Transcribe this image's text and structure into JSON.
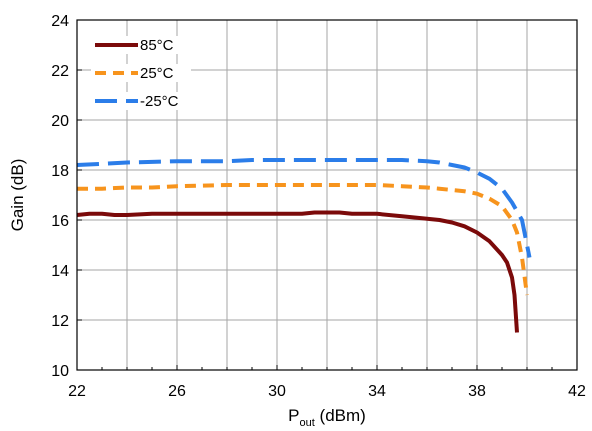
{
  "chart_data": {
    "type": "line",
    "xlabel_main": "P",
    "xlabel_sub": "out",
    "xlabel_unit": " (dBm)",
    "ylabel": "Gain (dB)",
    "xlim": [
      22,
      42
    ],
    "ylim": [
      10,
      24
    ],
    "x_ticks": [
      22,
      26,
      30,
      34,
      38,
      42
    ],
    "y_ticks": [
      10,
      12,
      14,
      16,
      18,
      20,
      22,
      24
    ],
    "x_tick_labels": [
      "22",
      "26",
      "30",
      "34",
      "38",
      "42"
    ],
    "y_tick_labels": [
      "10",
      "12",
      "14",
      "16",
      "18",
      "20",
      "22",
      "24"
    ],
    "grid": true,
    "legend_position": "top-left",
    "series": [
      {
        "name": "85°C",
        "color": "#7b0a0a",
        "dash": "solid",
        "x": [
          22.0,
          22.5,
          23.0,
          23.5,
          24.0,
          25.0,
          26.0,
          28.0,
          30.0,
          31.0,
          31.5,
          32.5,
          33.0,
          34.0,
          35.0,
          35.5,
          36.0,
          36.5,
          37.0,
          37.5,
          38.0,
          38.5,
          39.0,
          39.2,
          39.4,
          39.5,
          39.6
        ],
        "y": [
          16.2,
          16.25,
          16.25,
          16.2,
          16.2,
          16.25,
          16.25,
          16.25,
          16.25,
          16.25,
          16.3,
          16.3,
          16.25,
          16.25,
          16.15,
          16.1,
          16.05,
          16.0,
          15.9,
          15.75,
          15.5,
          15.15,
          14.6,
          14.3,
          13.7,
          13.0,
          11.5
        ]
      },
      {
        "name": "25°C",
        "color": "#f7941d",
        "dash": "dash",
        "x": [
          22.0,
          23.0,
          24.0,
          25.0,
          26.0,
          28.0,
          30.0,
          32.0,
          34.0,
          35.0,
          36.0,
          36.5,
          37.0,
          37.5,
          38.0,
          38.5,
          39.0,
          39.4,
          39.6,
          39.8,
          40.0
        ],
        "y": [
          17.25,
          17.25,
          17.3,
          17.3,
          17.35,
          17.4,
          17.4,
          17.4,
          17.4,
          17.35,
          17.3,
          17.25,
          17.2,
          17.15,
          17.05,
          16.85,
          16.55,
          16.0,
          15.5,
          14.5,
          13.0
        ]
      },
      {
        "name": "-25°C",
        "color": "#2b7de9",
        "dash": "longdash",
        "x": [
          22.0,
          23.0,
          24.0,
          26.0,
          28.0,
          29.0,
          30.0,
          32.0,
          34.0,
          35.0,
          36.0,
          36.5,
          37.0,
          37.5,
          38.0,
          38.5,
          39.0,
          39.4,
          39.8,
          40.1
        ],
        "y": [
          18.2,
          18.25,
          18.3,
          18.35,
          18.35,
          18.4,
          18.4,
          18.4,
          18.4,
          18.4,
          18.35,
          18.3,
          18.2,
          18.1,
          17.9,
          17.65,
          17.25,
          16.7,
          16.0,
          14.5
        ]
      }
    ]
  }
}
